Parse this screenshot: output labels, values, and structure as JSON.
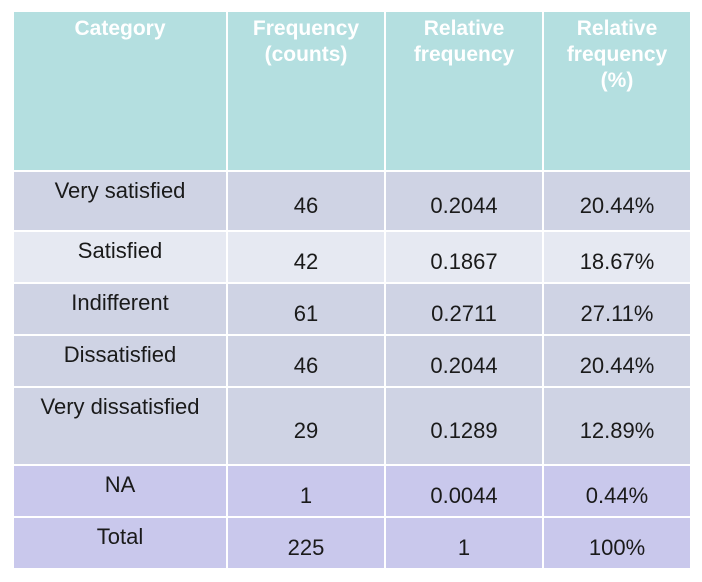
{
  "table": {
    "header": [
      "Category",
      "Frequency (counts)",
      "Relative frequency",
      "Relative frequency (%)"
    ],
    "rows": [
      [
        "Very satisfied",
        "46",
        "0.2044",
        "20.44%"
      ],
      [
        "Satisfied",
        "42",
        "0.1867",
        "18.67%"
      ],
      [
        "Indifferent",
        "61",
        "0.2711",
        "27.11%"
      ],
      [
        "Dissatisfied",
        "46",
        "0.2044",
        "20.44%"
      ],
      [
        "Very dissatisfied",
        "29",
        "0.1289",
        "12.89%"
      ],
      [
        "NA",
        "1",
        "0.0044",
        "0.44%"
      ],
      [
        "Total",
        "225",
        "1",
        "100%"
      ]
    ]
  }
}
